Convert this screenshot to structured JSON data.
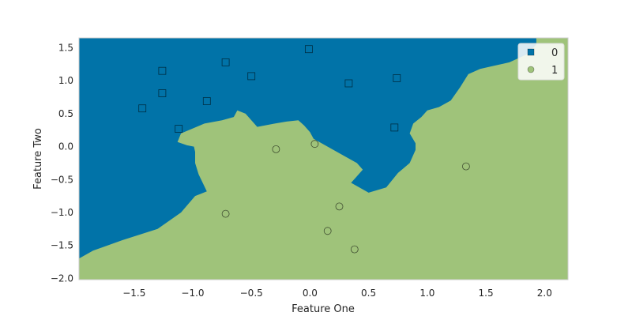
{
  "chart_data": {
    "type": "scatter",
    "title": "",
    "xlabel": "Feature One",
    "ylabel": "Feature Two",
    "xlim": [
      -1.97,
      2.2
    ],
    "ylim": [
      -2.02,
      1.65
    ],
    "xticks": [
      -1.5,
      -1.0,
      -0.5,
      0.0,
      0.5,
      1.0,
      1.5,
      2.0
    ],
    "xtick_labels": [
      "−1.5",
      "−1.0",
      "−0.5",
      "0.0",
      "0.5",
      "1.0",
      "1.5",
      "2.0"
    ],
    "yticks": [
      1.5,
      1.0,
      0.5,
      0.0,
      -0.5,
      -1.0,
      -1.5,
      -2.0
    ],
    "ytick_labels": [
      "1.5",
      "1.0",
      "0.5",
      "0.0",
      "−0.5",
      "−1.0",
      "−1.5",
      "−2.0"
    ],
    "grid": false,
    "legend_position": "top-right",
    "background": "decision regions",
    "region_colors": {
      "0": "#0173a8",
      "1": "#9fc37a"
    },
    "series": [
      {
        "name": "0",
        "marker": "square",
        "color": "#0173a8",
        "points": [
          [
            -0.01,
            1.48
          ],
          [
            -0.72,
            1.28
          ],
          [
            -1.26,
            1.15
          ],
          [
            -0.5,
            1.07
          ],
          [
            0.74,
            1.04
          ],
          [
            0.33,
            0.96
          ],
          [
            -1.26,
            0.81
          ],
          [
            -0.88,
            0.69
          ],
          [
            -1.43,
            0.58
          ],
          [
            -1.12,
            0.27
          ],
          [
            0.72,
            0.29
          ]
        ]
      },
      {
        "name": "1",
        "marker": "circle",
        "color": "#9fc37a",
        "points": [
          [
            -0.29,
            -0.04
          ],
          [
            0.04,
            0.04
          ],
          [
            1.33,
            -0.3
          ],
          [
            0.25,
            -0.91
          ],
          [
            -0.72,
            -1.02
          ],
          [
            0.15,
            -1.28
          ],
          [
            0.38,
            -1.56
          ]
        ]
      }
    ],
    "boundary": [
      [
        -1.97,
        -1.7
      ],
      [
        -1.85,
        -1.58
      ],
      [
        -1.6,
        -1.42
      ],
      [
        -1.3,
        -1.25
      ],
      [
        -1.1,
        -1.0
      ],
      [
        -0.98,
        -0.75
      ],
      [
        -0.88,
        -0.68
      ],
      [
        -0.95,
        -0.42
      ],
      [
        -0.98,
        -0.25
      ],
      [
        -0.98,
        -0.08
      ],
      [
        -0.99,
        0.0
      ],
      [
        -1.05,
        0.02
      ],
      [
        -1.13,
        0.07
      ],
      [
        -1.1,
        0.2
      ],
      [
        -0.9,
        0.35
      ],
      [
        -0.75,
        0.4
      ],
      [
        -0.65,
        0.45
      ],
      [
        -0.62,
        0.55
      ],
      [
        -0.55,
        0.5
      ],
      [
        -0.5,
        0.4
      ],
      [
        -0.45,
        0.3
      ],
      [
        -0.3,
        0.35
      ],
      [
        -0.2,
        0.38
      ],
      [
        -0.1,
        0.4
      ],
      [
        -0.05,
        0.32
      ],
      [
        0.0,
        0.22
      ],
      [
        0.03,
        0.12
      ],
      [
        0.15,
        0.0
      ],
      [
        0.3,
        -0.15
      ],
      [
        0.4,
        -0.25
      ],
      [
        0.45,
        -0.35
      ],
      [
        0.4,
        -0.45
      ],
      [
        0.35,
        -0.55
      ],
      [
        0.5,
        -0.7
      ],
      [
        0.65,
        -0.62
      ],
      [
        0.75,
        -0.4
      ],
      [
        0.85,
        -0.25
      ],
      [
        0.9,
        -0.05
      ],
      [
        0.9,
        0.05
      ],
      [
        0.85,
        0.2
      ],
      [
        0.88,
        0.35
      ],
      [
        0.95,
        0.45
      ],
      [
        1.0,
        0.55
      ],
      [
        1.1,
        0.6
      ],
      [
        1.2,
        0.7
      ],
      [
        1.28,
        0.9
      ],
      [
        1.35,
        1.1
      ],
      [
        1.45,
        1.18
      ],
      [
        1.55,
        1.22
      ],
      [
        1.7,
        1.28
      ],
      [
        1.85,
        1.4
      ],
      [
        1.93,
        1.55
      ],
      [
        1.93,
        1.65
      ],
      [
        -1.97,
        1.65
      ]
    ]
  }
}
